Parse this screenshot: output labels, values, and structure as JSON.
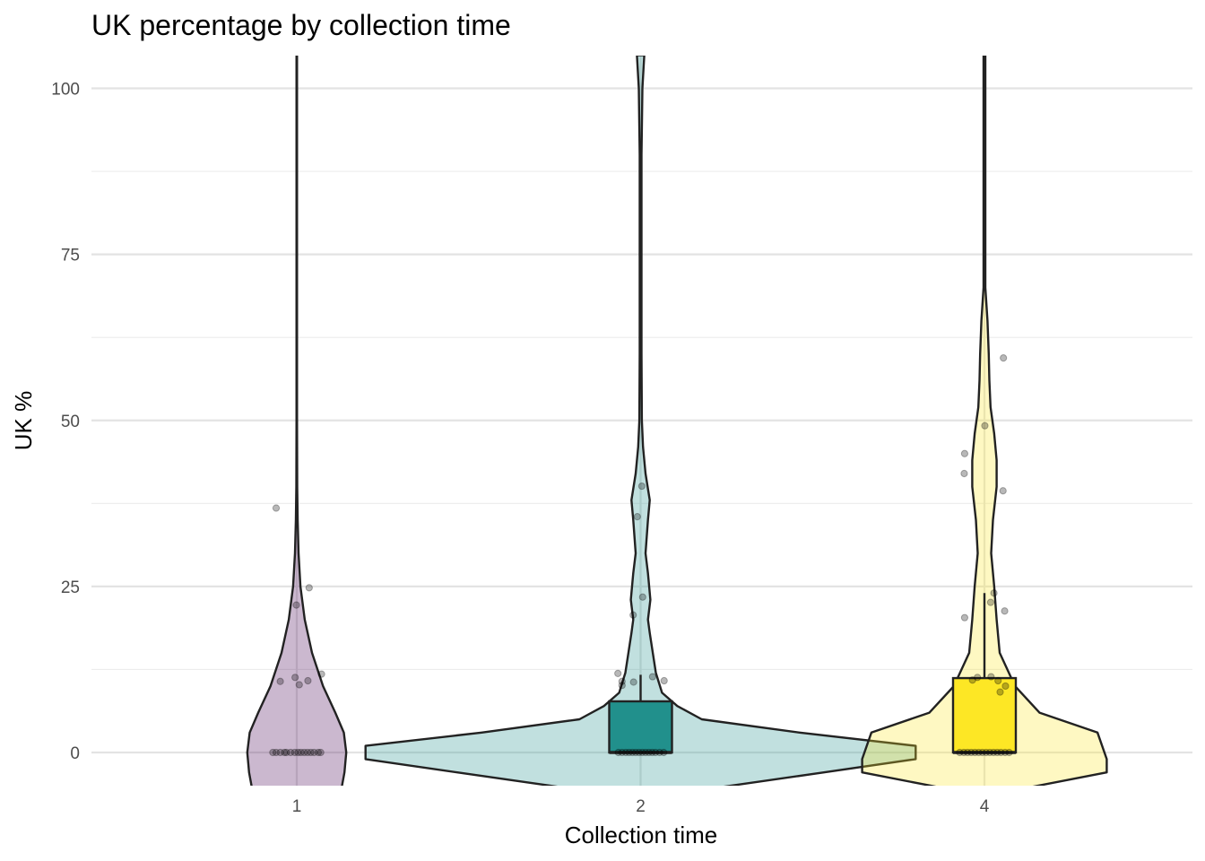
{
  "chart_data": {
    "type": "violin",
    "title": "UK percentage by collection time",
    "xlabel": "Collection time",
    "ylabel": "UK %",
    "categories": [
      "1",
      "2",
      "4"
    ],
    "ylim": [
      -5,
      105
    ],
    "yticks": [
      0,
      25,
      50,
      75,
      100
    ],
    "grid": true,
    "legend": "none",
    "series_colors": {
      "1": "#440154",
      "2": "#21908C",
      "4": "#FDE725"
    },
    "violin_fill_alpha": 0.28,
    "violins": [
      {
        "category": "1",
        "color": "#440154",
        "profile": [
          [
            -5.5,
            0.073
          ],
          [
            -3,
            0.078
          ],
          [
            0,
            0.081
          ],
          [
            3,
            0.077
          ],
          [
            6,
            0.063
          ],
          [
            10,
            0.043
          ],
          [
            15,
            0.025
          ],
          [
            20,
            0.013
          ],
          [
            25,
            0.006
          ],
          [
            30,
            0.003
          ],
          [
            35,
            0.0015
          ],
          [
            40,
            0.0008
          ],
          [
            50,
            0.0005
          ],
          [
            100,
            0.0005
          ],
          [
            105,
            0.0005
          ]
        ],
        "box": null
      },
      {
        "category": "2",
        "color": "#21908C",
        "profile": [
          [
            -5.5,
            0.11
          ],
          [
            -3,
            0.3
          ],
          [
            -1,
            0.45
          ],
          [
            1,
            0.45
          ],
          [
            3,
            0.26
          ],
          [
            5,
            0.1
          ],
          [
            7,
            0.06
          ],
          [
            9,
            0.035
          ],
          [
            12,
            0.025
          ],
          [
            15,
            0.02
          ],
          [
            18,
            0.015
          ],
          [
            20,
            0.012
          ],
          [
            23,
            0.016
          ],
          [
            27,
            0.012
          ],
          [
            30,
            0.008
          ],
          [
            35,
            0.012
          ],
          [
            38,
            0.015
          ],
          [
            42,
            0.008
          ],
          [
            46,
            0.004
          ],
          [
            50,
            0.002
          ],
          [
            60,
            0.0015
          ],
          [
            70,
            0.0015
          ],
          [
            80,
            0.0015
          ],
          [
            90,
            0.0015
          ],
          [
            100,
            0.003
          ],
          [
            105,
            0.006
          ]
        ],
        "box": {
          "q1": 0,
          "median": 0,
          "q3": 7.7,
          "whisker_low": 0,
          "whisker_high": 11.7
        }
      },
      {
        "category": "4",
        "color": "#FDE725",
        "profile": [
          [
            -5.5,
            0.06
          ],
          [
            -3,
            0.2
          ],
          [
            -1,
            0.2
          ],
          [
            3,
            0.185
          ],
          [
            6,
            0.09
          ],
          [
            10,
            0.05
          ],
          [
            15,
            0.025
          ],
          [
            20,
            0.02
          ],
          [
            25,
            0.016
          ],
          [
            30,
            0.011
          ],
          [
            35,
            0.014
          ],
          [
            40,
            0.02
          ],
          [
            44,
            0.02
          ],
          [
            48,
            0.016
          ],
          [
            52,
            0.01
          ],
          [
            56,
            0.008
          ],
          [
            60,
            0.007
          ],
          [
            65,
            0.005
          ],
          [
            70,
            0.0015
          ],
          [
            80,
            0.0015
          ],
          [
            90,
            0.0015
          ],
          [
            100,
            0.0015
          ],
          [
            105,
            0.0015
          ]
        ],
        "box": {
          "q1": 0,
          "median": 0,
          "q3": 11.2,
          "whisker_low": 0,
          "whisker_high": 24
        }
      }
    ],
    "points": [
      {
        "category": "1",
        "jitter": -0.05,
        "value": 36.8
      },
      {
        "category": "1",
        "jitter": 0.03,
        "value": 24.8
      },
      {
        "category": "1",
        "jitter": -0.001,
        "value": 22.2
      },
      {
        "category": "1",
        "jitter": 0.06,
        "value": 11.8
      },
      {
        "category": "1",
        "jitter": -0.04,
        "value": 10.7
      },
      {
        "category": "1",
        "jitter": -0.004,
        "value": 11.3
      },
      {
        "category": "1",
        "jitter": 0.027,
        "value": 10.8
      },
      {
        "category": "1",
        "jitter": 0.006,
        "value": 10.2
      },
      {
        "category": "1",
        "jitter": -0.058,
        "value": 0
      },
      {
        "category": "1",
        "jitter": -0.05,
        "value": 0
      },
      {
        "category": "1",
        "jitter": -0.04,
        "value": 0
      },
      {
        "category": "1",
        "jitter": -0.03,
        "value": 0
      },
      {
        "category": "1",
        "jitter": -0.025,
        "value": 0
      },
      {
        "category": "1",
        "jitter": -0.015,
        "value": 0
      },
      {
        "category": "1",
        "jitter": -0.005,
        "value": 0
      },
      {
        "category": "1",
        "jitter": 0.003,
        "value": 0
      },
      {
        "category": "1",
        "jitter": 0.01,
        "value": 0
      },
      {
        "category": "1",
        "jitter": 0.018,
        "value": 0
      },
      {
        "category": "1",
        "jitter": 0.026,
        "value": 0
      },
      {
        "category": "1",
        "jitter": 0.034,
        "value": 0
      },
      {
        "category": "1",
        "jitter": 0.042,
        "value": 0
      },
      {
        "category": "1",
        "jitter": 0.052,
        "value": 0
      },
      {
        "category": "1",
        "jitter": 0.058,
        "value": 0
      },
      {
        "category": "2",
        "jitter": 0.003,
        "value": 40.1
      },
      {
        "category": "2",
        "jitter": -0.008,
        "value": 35.5
      },
      {
        "category": "2",
        "jitter": 0.005,
        "value": 23.4
      },
      {
        "category": "2",
        "jitter": -0.018,
        "value": 20.7
      },
      {
        "category": "2",
        "jitter": -0.055,
        "value": 11.9
      },
      {
        "category": "2",
        "jitter": -0.045,
        "value": 10.7
      },
      {
        "category": "2",
        "jitter": -0.045,
        "value": 10.1
      },
      {
        "category": "2",
        "jitter": -0.017,
        "value": 10.6
      },
      {
        "category": "2",
        "jitter": 0.029,
        "value": 11.4
      },
      {
        "category": "2",
        "jitter": 0.057,
        "value": 10.8
      },
      {
        "category": "2",
        "jitter": -0.054,
        "value": 0
      },
      {
        "category": "2",
        "jitter": -0.045,
        "value": 0
      },
      {
        "category": "2",
        "jitter": -0.036,
        "value": 0
      },
      {
        "category": "2",
        "jitter": -0.028,
        "value": 0
      },
      {
        "category": "2",
        "jitter": -0.02,
        "value": 0
      },
      {
        "category": "2",
        "jitter": -0.012,
        "value": 0
      },
      {
        "category": "2",
        "jitter": -0.004,
        "value": 0
      },
      {
        "category": "2",
        "jitter": 0.004,
        "value": 0
      },
      {
        "category": "2",
        "jitter": 0.012,
        "value": 0
      },
      {
        "category": "2",
        "jitter": 0.02,
        "value": 0
      },
      {
        "category": "2",
        "jitter": 0.028,
        "value": 0
      },
      {
        "category": "2",
        "jitter": 0.036,
        "value": 0
      },
      {
        "category": "2",
        "jitter": 0.046,
        "value": 0
      },
      {
        "category": "2",
        "jitter": 0.056,
        "value": 0
      },
      {
        "category": "4",
        "jitter": 0.046,
        "value": 59.4
      },
      {
        "category": "4",
        "jitter": 0.001,
        "value": 49.2
      },
      {
        "category": "4",
        "jitter": -0.048,
        "value": 45.0
      },
      {
        "category": "4",
        "jitter": -0.049,
        "value": 42.0
      },
      {
        "category": "4",
        "jitter": 0.045,
        "value": 39.4
      },
      {
        "category": "4",
        "jitter": 0.023,
        "value": 24.0
      },
      {
        "category": "4",
        "jitter": 0.015,
        "value": 22.6
      },
      {
        "category": "4",
        "jitter": 0.049,
        "value": 21.3
      },
      {
        "category": "4",
        "jitter": -0.048,
        "value": 20.3
      },
      {
        "category": "4",
        "jitter": -0.029,
        "value": 10.9
      },
      {
        "category": "4",
        "jitter": -0.017,
        "value": 11.3
      },
      {
        "category": "4",
        "jitter": 0.016,
        "value": 11.4
      },
      {
        "category": "4",
        "jitter": 0.033,
        "value": 10.8
      },
      {
        "category": "4",
        "jitter": 0.051,
        "value": 10.0
      },
      {
        "category": "4",
        "jitter": 0.038,
        "value": 9.1
      },
      {
        "category": "4",
        "jitter": -0.06,
        "value": 0
      },
      {
        "category": "4",
        "jitter": -0.05,
        "value": 0
      },
      {
        "category": "4",
        "jitter": -0.041,
        "value": 0
      },
      {
        "category": "4",
        "jitter": -0.032,
        "value": 0
      },
      {
        "category": "4",
        "jitter": -0.023,
        "value": 0
      },
      {
        "category": "4",
        "jitter": -0.014,
        "value": 0
      },
      {
        "category": "4",
        "jitter": -0.005,
        "value": 0
      },
      {
        "category": "4",
        "jitter": 0.004,
        "value": 0
      },
      {
        "category": "4",
        "jitter": 0.013,
        "value": 0
      },
      {
        "category": "4",
        "jitter": 0.022,
        "value": 0
      },
      {
        "category": "4",
        "jitter": 0.031,
        "value": 0
      },
      {
        "category": "4",
        "jitter": 0.04,
        "value": 0
      },
      {
        "category": "4",
        "jitter": 0.05,
        "value": 0
      },
      {
        "category": "4",
        "jitter": 0.06,
        "value": 0
      }
    ]
  }
}
